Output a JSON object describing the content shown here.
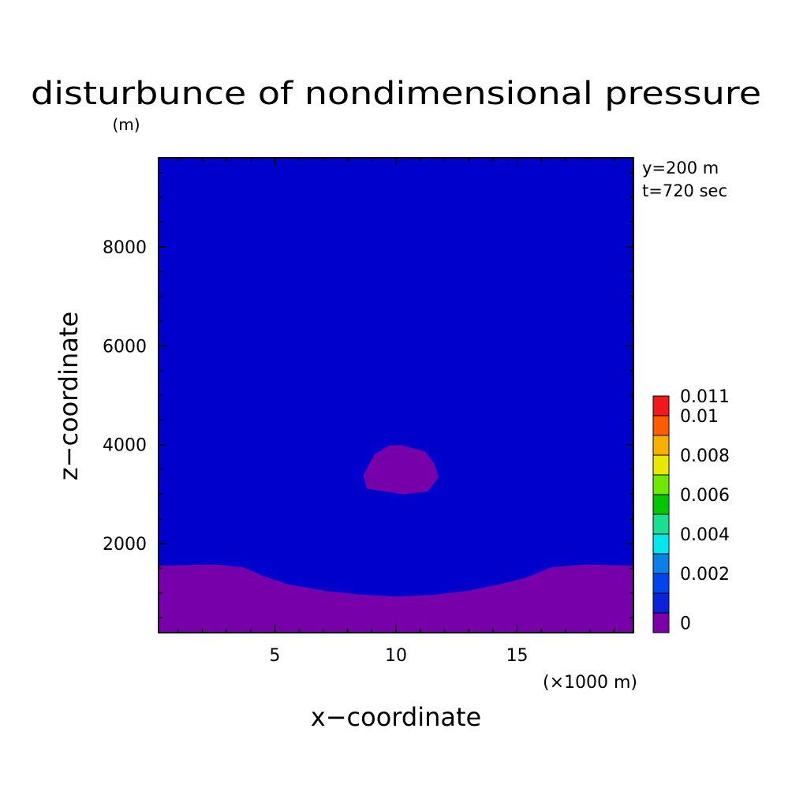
{
  "chart_data": {
    "type": "heatmap",
    "title": "disturbunce of nondimensional pressure",
    "y_unit": "(m)",
    "xlabel": "x−coordinate",
    "ylabel": "z−coordinate",
    "x_unit": "(×1000 m)",
    "annotations": [
      "y=200 m",
      "t=720 sec"
    ],
    "xlim": [
      0.2,
      19.8
    ],
    "ylim": [
      200,
      9800
    ],
    "x_ticks": [
      5,
      10,
      15
    ],
    "x_tick_labels": [
      "5",
      "10",
      "15"
    ],
    "y_ticks": [
      2000,
      4000,
      6000,
      8000
    ],
    "y_tick_labels": [
      "2000",
      "4000",
      "6000",
      "8000"
    ],
    "colorbar": {
      "levels": [
        0,
        0.001,
        0.002,
        0.003,
        0.004,
        0.005,
        0.006,
        0.007,
        0.008,
        0.009,
        0.01,
        0.011
      ],
      "labels": [
        {
          "value": 0.011,
          "text": "0.011"
        },
        {
          "value": 0.01,
          "text": "0.01"
        },
        {
          "value": 0.008,
          "text": "0.008"
        },
        {
          "value": 0.006,
          "text": "0.006"
        },
        {
          "value": 0.004,
          "text": "0.004"
        },
        {
          "value": 0.002,
          "text": "0.002"
        },
        {
          "value": 0,
          "text": "0"
        }
      ],
      "colors": [
        "#7b00a8",
        "#0a22d8",
        "#0044ee",
        "#0880e8",
        "#00e8e8",
        "#18e090",
        "#00c800",
        "#70e800",
        "#e8e800",
        "#f8b000",
        "#ff5c00",
        "#f01818"
      ]
    },
    "background_color": "#0000cc",
    "field_regions": [
      {
        "name": "lower negative layer",
        "color": "#7700aa",
        "boundary": [
          [
            0.2,
            200
          ],
          [
            0.2,
            1550
          ],
          [
            2.5,
            1580
          ],
          [
            3.7,
            1520
          ],
          [
            4.5,
            1350
          ],
          [
            5.5,
            1180
          ],
          [
            7.0,
            1050
          ],
          [
            8.5,
            970
          ],
          [
            10.0,
            930
          ],
          [
            11.5,
            960
          ],
          [
            13.0,
            1050
          ],
          [
            14.3,
            1180
          ],
          [
            15.3,
            1300
          ],
          [
            16.4,
            1520
          ],
          [
            17.8,
            1580
          ],
          [
            19.8,
            1550
          ],
          [
            19.8,
            200
          ]
        ]
      },
      {
        "name": "bubble",
        "color": "#7700aa",
        "boundary": [
          [
            10.2,
            3990
          ],
          [
            11.2,
            3860
          ],
          [
            11.6,
            3600
          ],
          [
            11.75,
            3330
          ],
          [
            11.3,
            3050
          ],
          [
            10.3,
            3000
          ],
          [
            9.5,
            3060
          ],
          [
            8.8,
            3110
          ],
          [
            8.65,
            3380
          ],
          [
            9.1,
            3800
          ],
          [
            9.7,
            3980
          ]
        ]
      }
    ]
  }
}
